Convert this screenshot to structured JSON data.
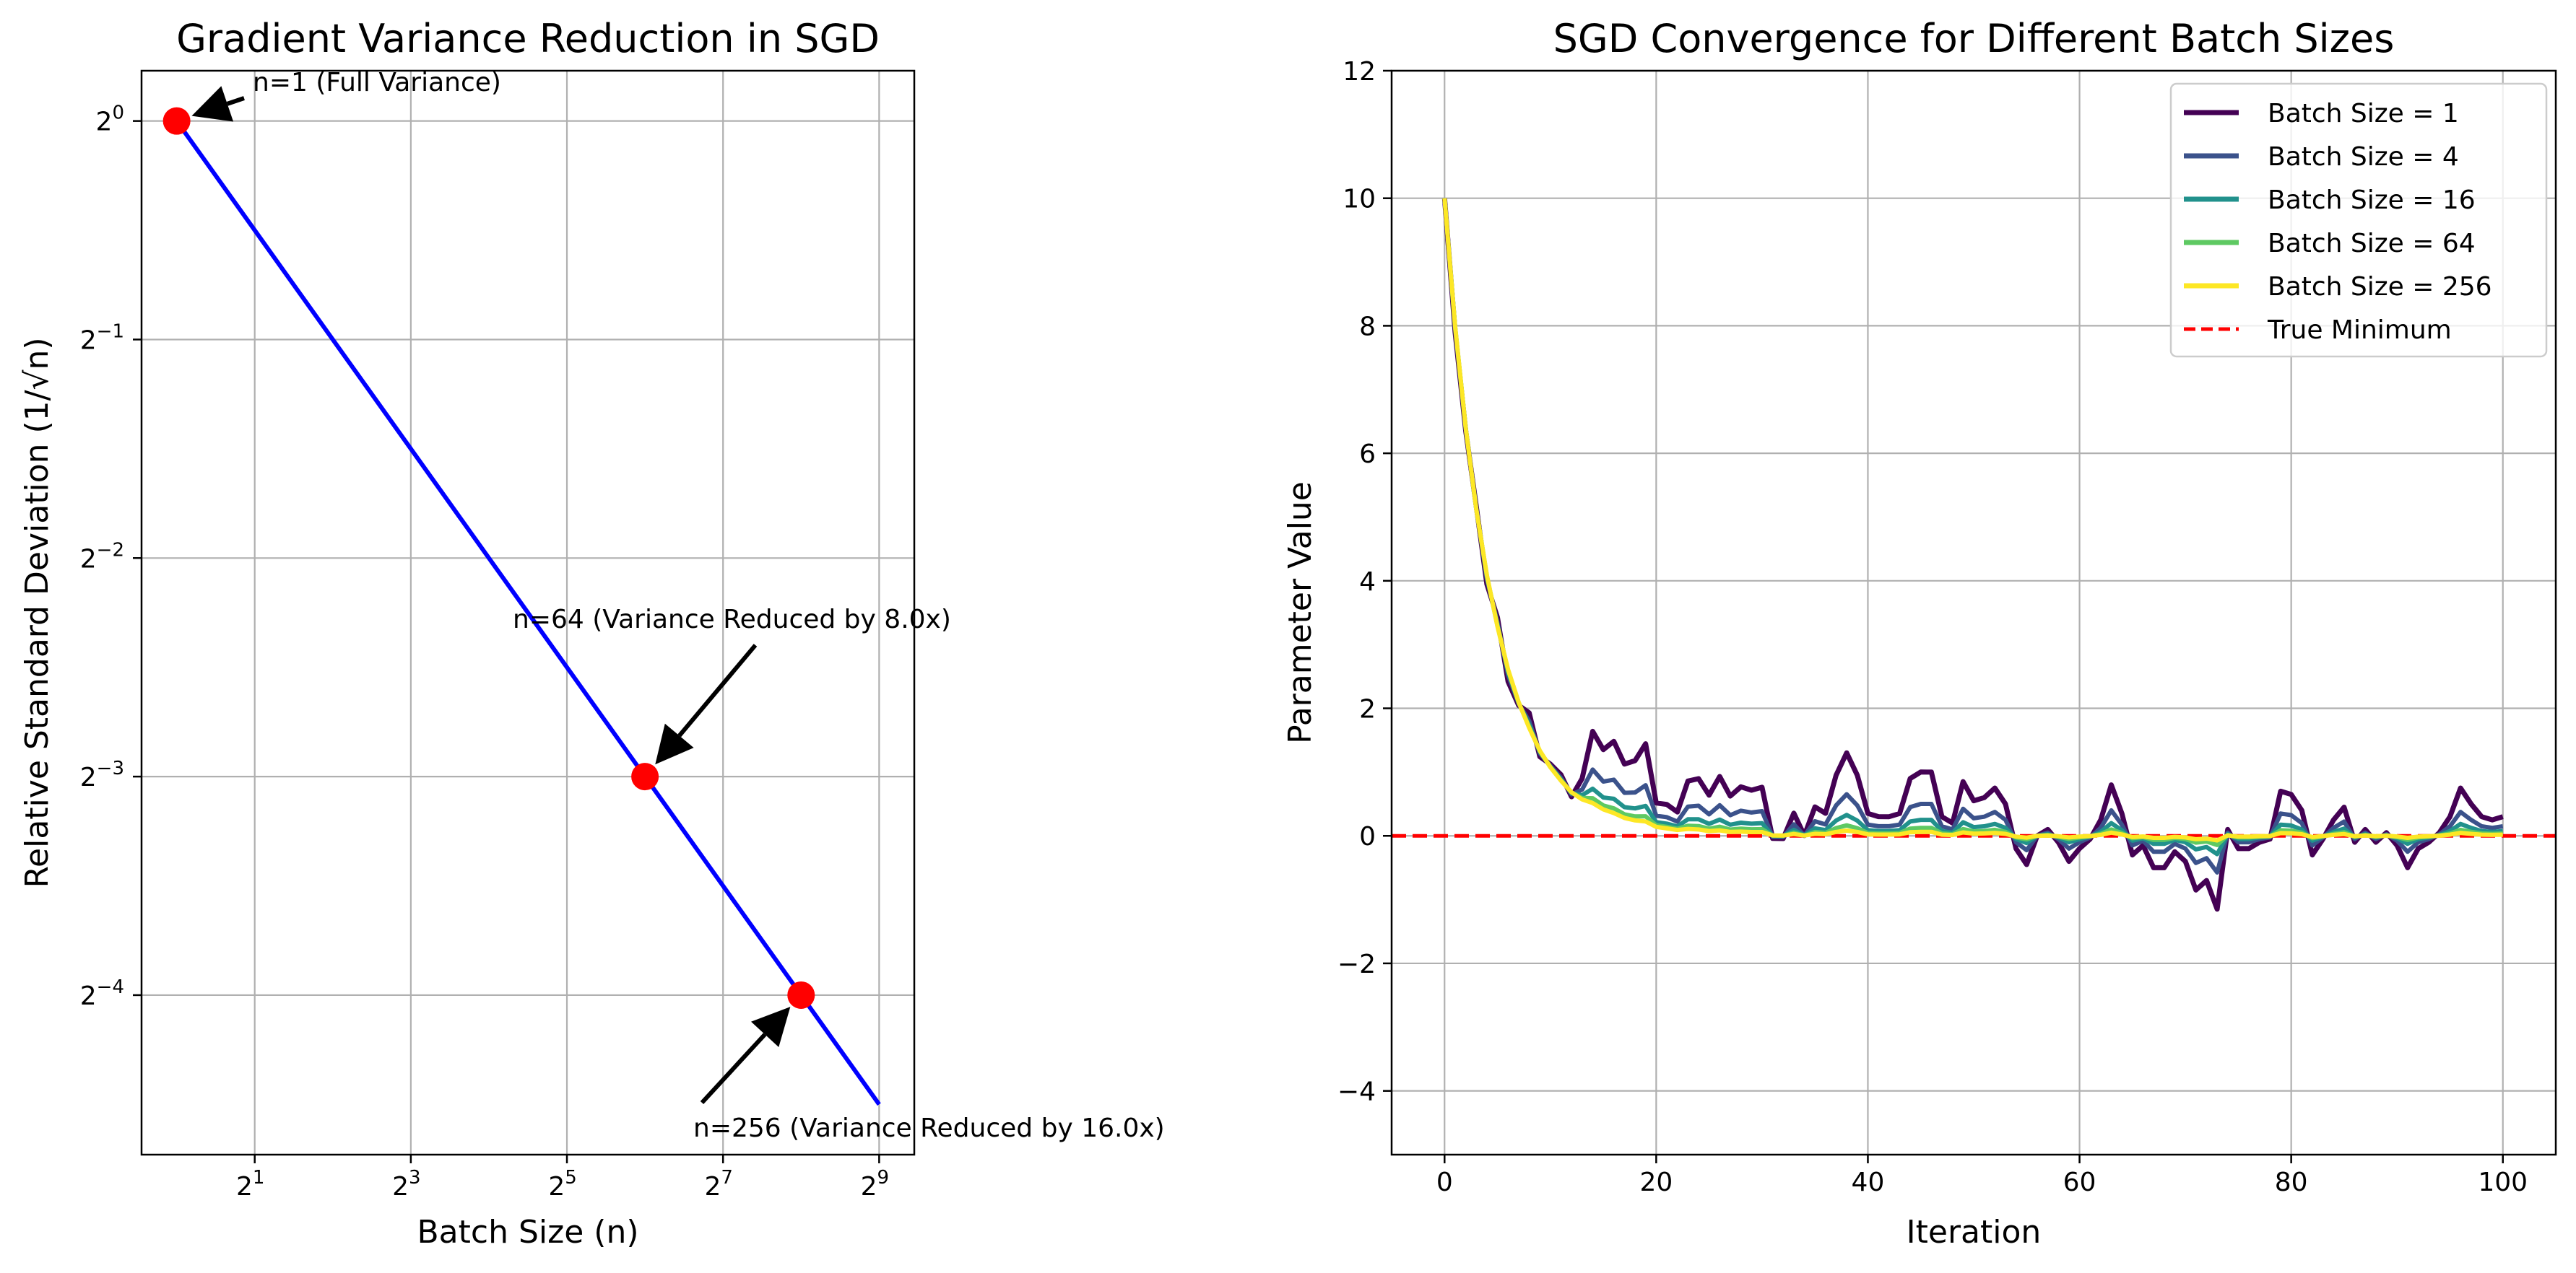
{
  "chart_data": [
    {
      "type": "line",
      "title": "Gradient Variance Reduction in SGD",
      "xlabel": "Batch Size (n)",
      "ylabel": "Relative Standard Deviation (1/√n)",
      "xscale": "log2",
      "yscale": "log2",
      "xlim_log2": [
        -0.45,
        9.45
      ],
      "ylim_log2": [
        -4.73,
        0.23
      ],
      "xticks": [
        {
          "exp": 1,
          "base": "2",
          "sup": "1"
        },
        {
          "exp": 3,
          "base": "2",
          "sup": "3"
        },
        {
          "exp": 5,
          "base": "2",
          "sup": "5"
        },
        {
          "exp": 7,
          "base": "2",
          "sup": "7"
        },
        {
          "exp": 9,
          "base": "2",
          "sup": "9"
        }
      ],
      "yticks": [
        {
          "exp": 0,
          "base": "2",
          "sup": "0"
        },
        {
          "exp": -1,
          "base": "2",
          "sup": "−1"
        },
        {
          "exp": -2,
          "base": "2",
          "sup": "−2"
        },
        {
          "exp": -3,
          "base": "2",
          "sup": "−3"
        },
        {
          "exp": -4,
          "base": "2",
          "sup": "−4"
        }
      ],
      "grid": true,
      "line": {
        "color": "#0000ff",
        "x": [
          1,
          512
        ],
        "y": [
          1,
          0.0441941738
        ]
      },
      "points": {
        "color": "#ff0000",
        "x": [
          1,
          64,
          256
        ],
        "y": [
          1,
          0.125,
          0.0625
        ]
      },
      "annotations": [
        {
          "text": "n=1 (Full Variance)",
          "x": 1,
          "y": 1
        },
        {
          "text": "n=64 (Variance Reduced by 8.0x)",
          "x": 64,
          "y": 0.125
        },
        {
          "text": "n=256 (Variance Reduced by 16.0x)",
          "x": 256,
          "y": 0.0625
        }
      ]
    },
    {
      "type": "line",
      "title": "SGD Convergence for Different Batch Sizes",
      "xlabel": "Iteration",
      "ylabel": "Parameter Value",
      "xlim": [
        -5,
        105
      ],
      "ylim": [
        -5,
        12
      ],
      "xticks": [
        "0",
        "20",
        "40",
        "60",
        "80",
        "100"
      ],
      "yticks": [
        "−4",
        "−2",
        "0",
        "2",
        "4",
        "6",
        "8",
        "10",
        "12"
      ],
      "grid": true,
      "legend_position": "upper right",
      "x": [
        0,
        1,
        2,
        3,
        4,
        5,
        6,
        7,
        8,
        9,
        10,
        11,
        12,
        13,
        14,
        15,
        16,
        17,
        18,
        19,
        20,
        21,
        22,
        23,
        24,
        25,
        26,
        27,
        28,
        29,
        30,
        31,
        32,
        33,
        34,
        35,
        36,
        37,
        38,
        39,
        40,
        41,
        42,
        43,
        44,
        45,
        46,
        47,
        48,
        49,
        50,
        51,
        52,
        53,
        54,
        55,
        56,
        57,
        58,
        59,
        60,
        61,
        62,
        63,
        64,
        65,
        66,
        67,
        68,
        69,
        70,
        71,
        72,
        73,
        74,
        75,
        76,
        77,
        78,
        79,
        80,
        81,
        82,
        83,
        84,
        85,
        86,
        87,
        88,
        89,
        90,
        91,
        92,
        93,
        94,
        95,
        96,
        97,
        98,
        99,
        100
      ],
      "noise_batch1": [
        0,
        -0.2,
        -0.1,
        0.1,
        -0.3,
        0.3,
        -0.4,
        -0.1,
        0.5,
        -0.2,
        0.1,
        0.2,
        -0.15,
        0.35,
        1.2,
        1.0,
        1.2,
        0.9,
        1.0,
        1.3,
        0.4,
        0.4,
        0.3,
        0.8,
        0.85,
        0.6,
        0.9,
        0.6,
        0.75,
        0.7,
        0.75,
        -0.05,
        -0.05,
        0.35,
        0.0,
        0.45,
        0.35,
        0.95,
        1.3,
        0.95,
        0.35,
        0.3,
        0.3,
        0.35,
        0.9,
        1.0,
        1.0,
        0.3,
        0.2,
        0.85,
        0.55,
        0.6,
        0.75,
        0.5,
        -0.2,
        -0.45,
        0.0,
        0.1,
        -0.1,
        -0.4,
        -0.2,
        -0.05,
        0.25,
        0.8,
        0.35,
        -0.3,
        -0.15,
        -0.5,
        -0.5,
        -0.25,
        -0.4,
        -0.85,
        -0.7,
        -1.15,
        0.1,
        -0.2,
        -0.2,
        -0.1,
        -0.05,
        0.7,
        0.65,
        0.4,
        -0.3,
        -0.05,
        0.25,
        0.45,
        -0.1,
        0.1,
        -0.1,
        0.05,
        -0.15,
        -0.5,
        -0.2,
        -0.1,
        0.05,
        0.3,
        0.75,
        0.5,
        0.3,
        0.25,
        0.3
      ],
      "series": [
        {
          "name": "Batch Size = 1",
          "color": "#440154",
          "width": 7,
          "batch": 1
        },
        {
          "name": "Batch Size = 4",
          "color": "#3b528b",
          "width": 6,
          "batch": 4
        },
        {
          "name": "Batch Size = 16",
          "color": "#21918c",
          "width": 6,
          "batch": 16
        },
        {
          "name": "Batch Size = 64",
          "color": "#5ec962",
          "width": 6,
          "batch": 64
        },
        {
          "name": "Batch Size = 256",
          "color": "#fde725",
          "width": 6,
          "batch": 256
        }
      ],
      "reference": {
        "name": "True Minimum",
        "y": 0,
        "color": "#ff0000",
        "dashed": true
      }
    }
  ]
}
